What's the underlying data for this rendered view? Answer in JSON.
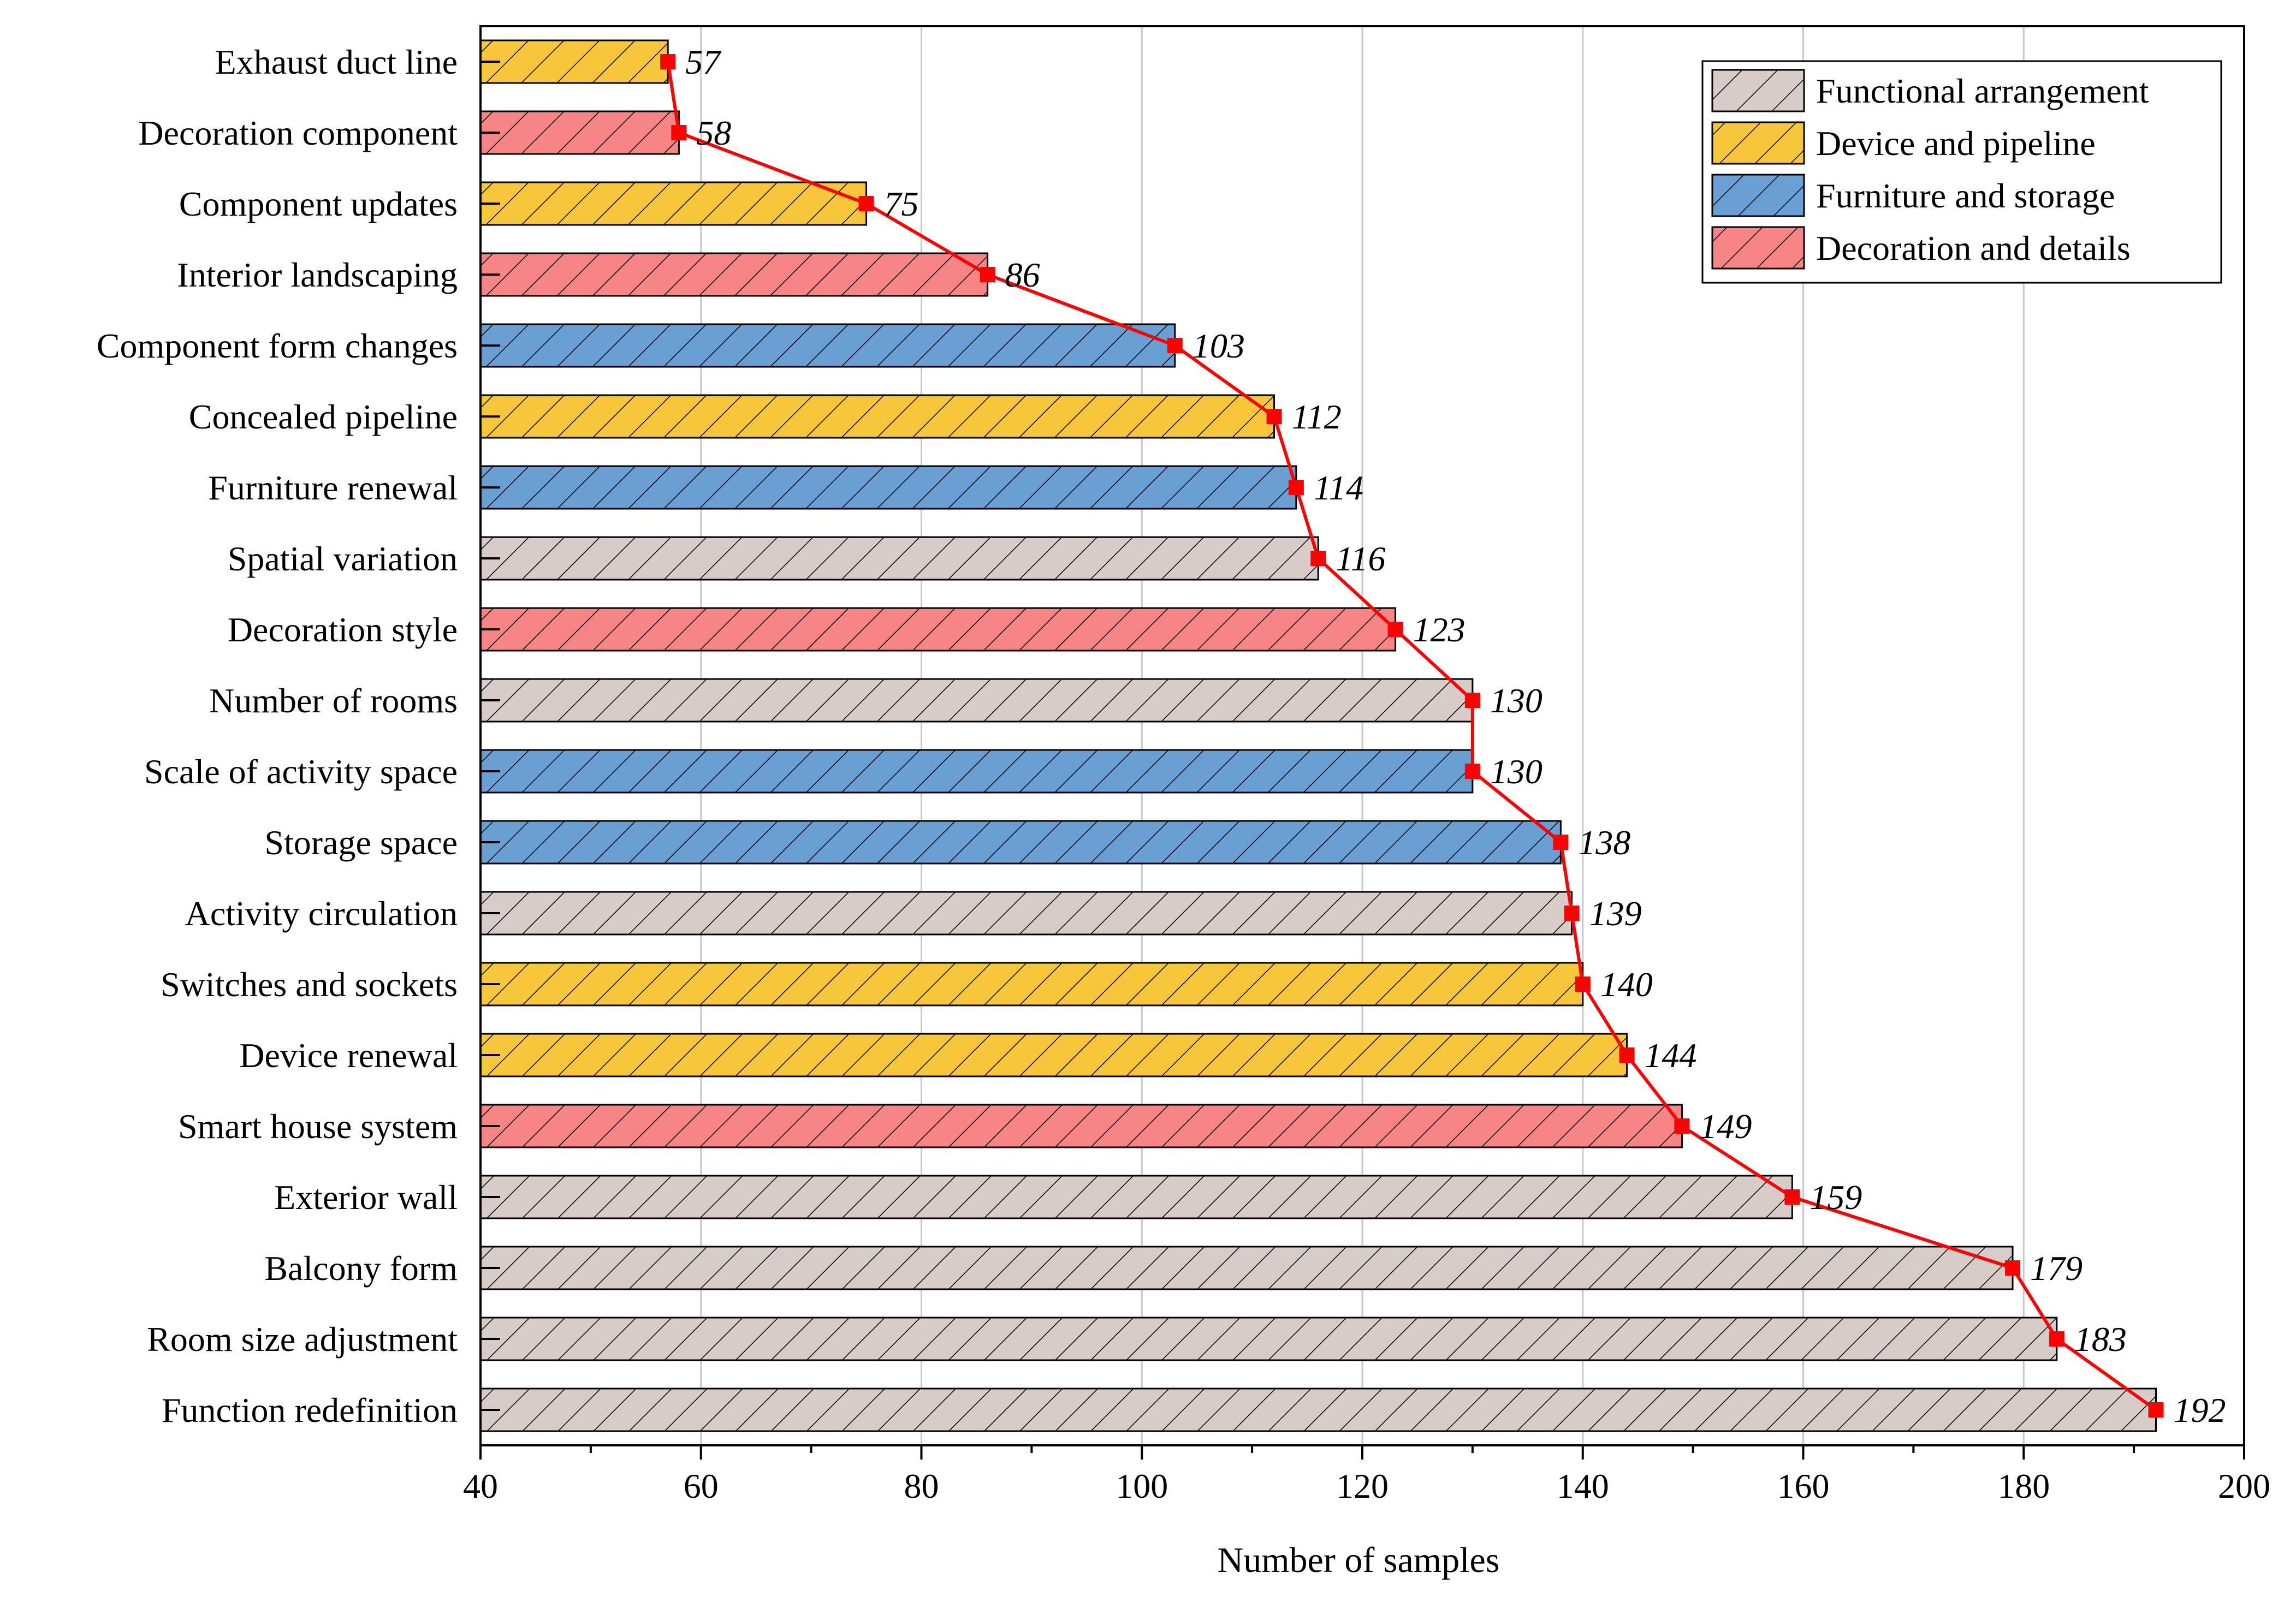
{
  "chart_data": {
    "type": "bar",
    "orientation": "horizontal",
    "xlabel": "Number of samples",
    "ylabel": "",
    "xlim": [
      40,
      200
    ],
    "xticks": [
      40,
      60,
      80,
      100,
      120,
      140,
      160,
      180,
      200
    ],
    "grid": "vertical",
    "legend_position": "top-right",
    "legend": [
      {
        "name": "Functional arrangement",
        "color": "#d8ccc9"
      },
      {
        "name": "Device and pipeline",
        "color": "#f8c63a"
      },
      {
        "name": "Furniture and storage",
        "color": "#6a9fd4"
      },
      {
        "name": "Decoration and details",
        "color": "#f88585"
      }
    ],
    "categories": [
      "Exhaust duct line",
      "Decoration component",
      "Component updates",
      "Interior landscaping",
      "Component form changes",
      "Concealed pipeline",
      "Furniture renewal",
      "Spatial variation",
      "Decoration style",
      "Number of rooms",
      "Scale of activity space",
      "Storage space",
      "Activity circulation",
      "Switches and sockets",
      "Device renewal",
      "Smart house system",
      "Exterior wall",
      "Balcony form",
      "Room size adjustment",
      "Function redefinition"
    ],
    "values": [
      57,
      58,
      75,
      86,
      103,
      112,
      114,
      116,
      123,
      130,
      130,
      138,
      139,
      140,
      144,
      149,
      159,
      179,
      183,
      192
    ],
    "groups": [
      "Device and pipeline",
      "Decoration and details",
      "Device and pipeline",
      "Decoration and details",
      "Furniture and storage",
      "Device and pipeline",
      "Furniture and storage",
      "Functional arrangement",
      "Decoration and details",
      "Functional arrangement",
      "Furniture and storage",
      "Furniture and storage",
      "Functional arrangement",
      "Device and pipeline",
      "Device and pipeline",
      "Decoration and details",
      "Functional arrangement",
      "Functional arrangement",
      "Functional arrangement",
      "Functional arrangement"
    ],
    "line_color": "#ff0000",
    "marker": "square"
  }
}
